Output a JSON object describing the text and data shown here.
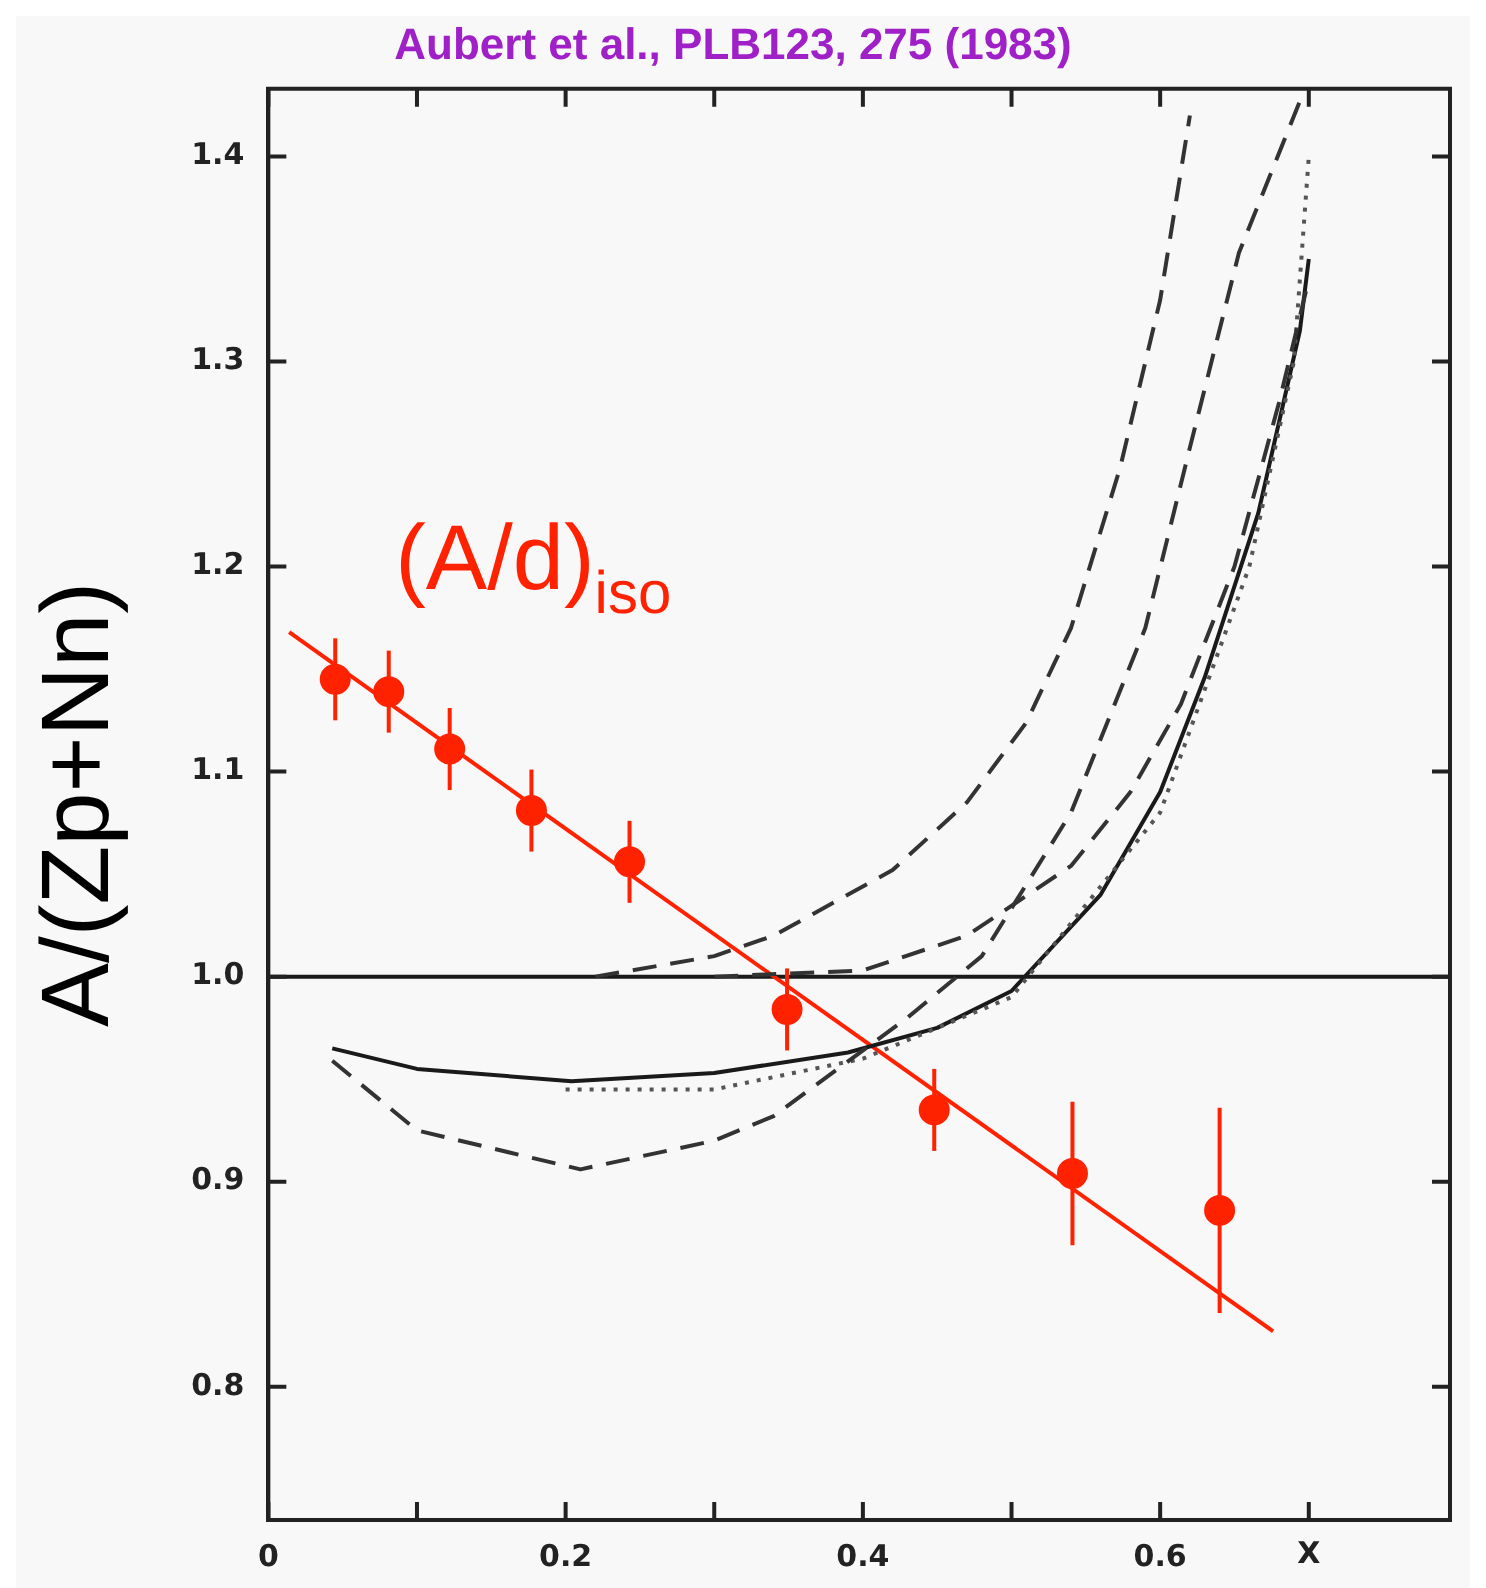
{
  "chart_data": {
    "type": "scatter",
    "title": "Aubert et al., PLB123, 275 (1983)",
    "xlabel": "X",
    "ylabel": "A/(Zp+Nn)",
    "xlim": [
      0,
      0.795
    ],
    "ylim": [
      0.735,
      1.433
    ],
    "xticks": [
      0,
      {
        "value": 0.1,
        "label": null
      },
      {
        "value": 0.2,
        "label": "0.2"
      },
      {
        "value": 0.3,
        "label": null
      },
      {
        "value": 0.4,
        "label": "0.4"
      },
      {
        "value": 0.5,
        "label": null
      },
      {
        "value": 0.6,
        "label": "0.6"
      },
      {
        "value": 0.7,
        "label": null
      }
    ],
    "yticks": [
      0.8,
      0.9,
      {
        "value": 1.0,
        "label": "1.0"
      },
      1.1,
      1.2,
      1.3,
      1.4
    ],
    "grid": false,
    "legend": false,
    "ref_lines": [
      {
        "axis": "y",
        "value": 1.0,
        "color": "#1a1a1a",
        "line_style": "solid"
      }
    ],
    "series": [
      {
        "type": "line",
        "color": "#333333",
        "line_style": "dashed",
        "marker": "none",
        "x": [
          0.22,
          0.3,
          0.34,
          0.42,
          0.47,
          0.51,
          0.54,
          0.573,
          0.6,
          0.62
        ],
        "values": [
          1.0,
          1.01,
          1.02,
          1.052,
          1.085,
          1.124,
          1.17,
          1.248,
          1.33,
          1.42
        ]
      },
      {
        "type": "line",
        "color": "#333333",
        "line_style": "dashed",
        "marker": "none",
        "x": [
          0.043,
          0.1,
          0.21,
          0.3,
          0.34,
          0.43,
          0.48,
          0.54,
          0.59,
          0.62,
          0.653,
          0.694
        ],
        "values": [
          0.959,
          0.925,
          0.906,
          0.92,
          0.932,
          0.98,
          1.01,
          1.08,
          1.17,
          1.258,
          1.353,
          1.427
        ]
      },
      {
        "type": "line",
        "color": "#333333",
        "line_style": "dashed",
        "marker": "none",
        "x": [
          0.3,
          0.4,
          0.47,
          0.54,
          0.58,
          0.614,
          0.65,
          0.68,
          0.7
        ],
        "values": [
          1.0,
          1.003,
          1.02,
          1.054,
          1.09,
          1.133,
          1.2,
          1.28,
          1.34
        ]
      },
      {
        "type": "line",
        "color": "#555555",
        "line_style": "dotted",
        "marker": "none",
        "x": [
          0.2,
          0.3,
          0.4,
          0.5,
          0.6,
          0.66,
          0.69,
          0.7
        ],
        "values": [
          0.945,
          0.945,
          0.96,
          0.99,
          1.08,
          1.2,
          1.3,
          1.4
        ]
      },
      {
        "type": "line",
        "color": "#1a1a1a",
        "line_style": "solid",
        "marker": "none",
        "x": [
          0.043,
          0.1,
          0.204,
          0.3,
          0.39,
          0.45,
          0.5,
          0.56,
          0.6,
          0.63,
          0.666,
          0.694,
          0.7
        ],
        "values": [
          0.965,
          0.955,
          0.949,
          0.953,
          0.963,
          0.975,
          0.993,
          1.04,
          1.09,
          1.146,
          1.226,
          1.315,
          1.35
        ]
      },
      {
        "type": "line",
        "color": "#ff2200",
        "line_style": "solid",
        "marker": "none",
        "x": [
          0.014,
          0.676
        ],
        "values": [
          1.168,
          0.827
        ]
      },
      {
        "name": "(A/d)$_{iso}$",
        "color": "#ff2200",
        "marker": "circle",
        "x": [
          0.045,
          0.081,
          0.122,
          0.177,
          0.243,
          0.349,
          0.448,
          0.541,
          0.64
        ],
        "values": [
          1.145,
          1.139,
          1.111,
          1.081,
          1.056,
          0.984,
          0.935,
          0.904,
          0.886
        ],
        "errors": [
          0.02,
          0.02,
          0.02,
          0.02,
          0.02,
          0.02,
          0.02,
          0.035,
          0.05
        ]
      }
    ]
  }
}
